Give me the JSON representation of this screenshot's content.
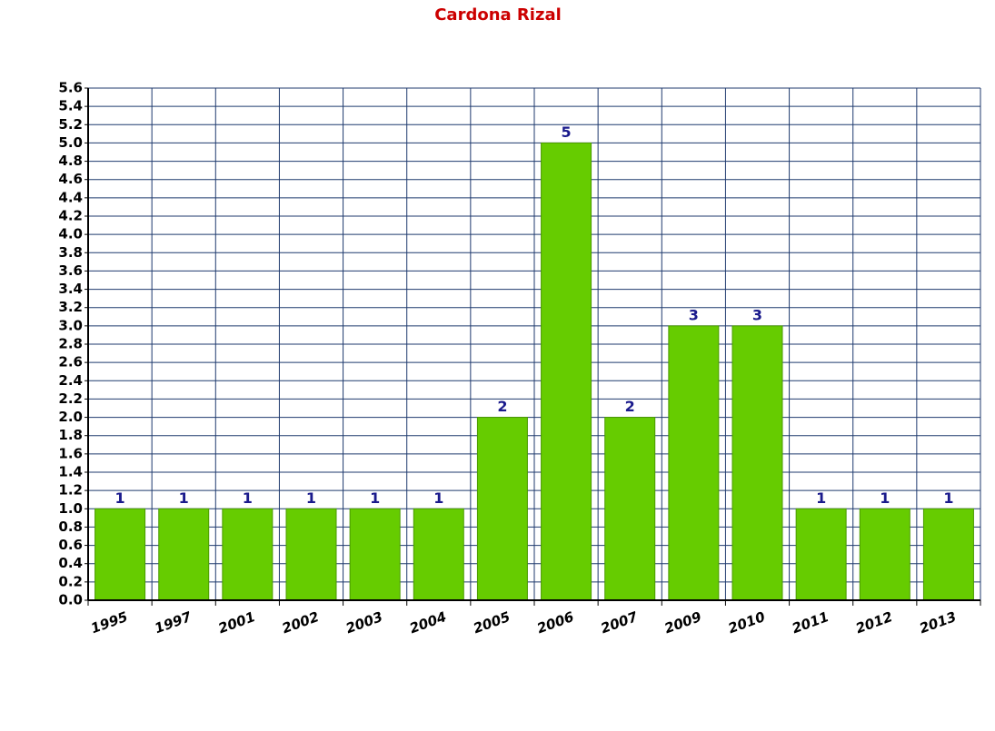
{
  "chart_data": {
    "type": "bar",
    "title": "Cardona Rizal",
    "categories": [
      "1995",
      "1997",
      "2001",
      "2002",
      "2003",
      "2004",
      "2005",
      "2006",
      "2007",
      "2009",
      "2010",
      "2011",
      "2012",
      "2013"
    ],
    "values": [
      1,
      1,
      1,
      1,
      1,
      1,
      2,
      5,
      2,
      3,
      3,
      1,
      1,
      1
    ],
    "color": "#66cc00",
    "ylim": [
      0,
      5.6
    ],
    "yticks": [
      {
        "value": 0,
        "label": "0.0"
      },
      0.2,
      0.4,
      0.6,
      0.8,
      {
        "value": 1,
        "label": "1.0"
      },
      1.2,
      1.4,
      1.6,
      1.8,
      {
        "value": 2,
        "label": "2.0"
      },
      2.2,
      2.4,
      2.6,
      2.8,
      {
        "value": 3,
        "label": "3.0"
      },
      3.2,
      3.4,
      3.6,
      3.8,
      {
        "value": 4,
        "label": "4.0"
      },
      4.2,
      4.4,
      4.6,
      4.8,
      {
        "value": 5,
        "label": "5.0"
      },
      5.2,
      5.4,
      5.6
    ],
    "grid": true
  }
}
